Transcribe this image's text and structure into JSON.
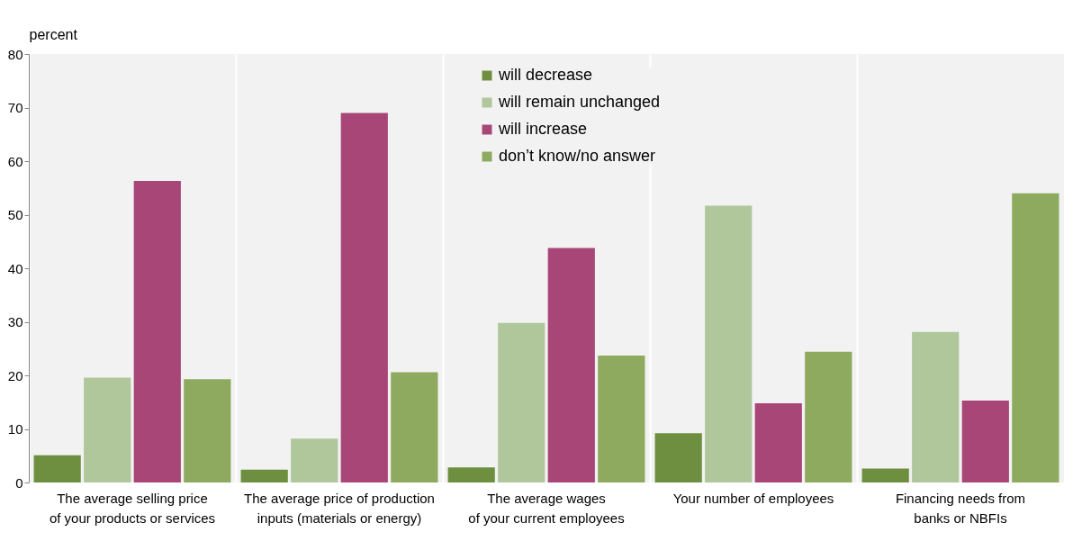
{
  "chart_data": {
    "type": "bar",
    "ylabel": "percent",
    "categories": [
      "The average selling price\nof your products or services",
      "The average price of production\ninputs (materials or energy)",
      "The average wages\nof your current employees",
      "Your number of employees",
      "Financing needs from\nbanks or NBFIs"
    ],
    "series": [
      {
        "name": "will decrease",
        "color": "#6e8f3f",
        "values": [
          5.1,
          2.4,
          2.8,
          9.2,
          2.6
        ]
      },
      {
        "name": "will remain unchanged",
        "color": "#b0c79b",
        "values": [
          19.6,
          8.2,
          29.8,
          51.7,
          28.1
        ]
      },
      {
        "name": "will increase",
        "color": "#a84677",
        "values": [
          56.3,
          69.0,
          43.8,
          14.8,
          15.3
        ]
      },
      {
        "name": "don’t know/no answer",
        "color": "#8daa5e",
        "values": [
          19.3,
          20.6,
          23.7,
          24.4,
          54.0
        ]
      }
    ],
    "ylim": [
      0,
      80
    ],
    "yticks": [
      0,
      10,
      20,
      30,
      40,
      50,
      60,
      70,
      80
    ],
    "grid": "x",
    "legend": "top"
  }
}
